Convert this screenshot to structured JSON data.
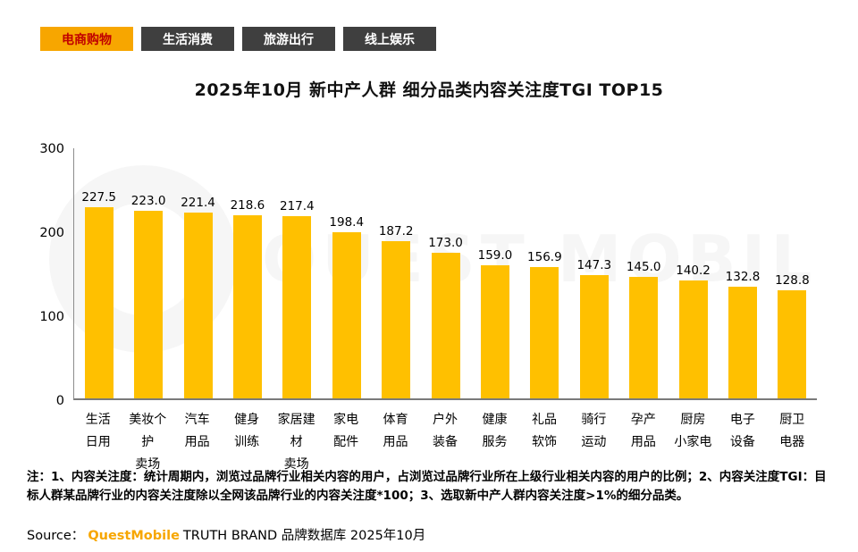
{
  "tabs": [
    {
      "label": "电商购物",
      "active": true
    },
    {
      "label": "生活消费",
      "active": false
    },
    {
      "label": "旅游出行",
      "active": false
    },
    {
      "label": "线上娱乐",
      "active": false
    }
  ],
  "title": "2025年10月 新中产人群 细分品类内容关注度TGI TOP15",
  "chart_data": {
    "type": "bar",
    "categories": [
      [
        "生活",
        "日用"
      ],
      [
        "美妆个护",
        "卖场"
      ],
      [
        "汽车",
        "用品"
      ],
      [
        "健身",
        "训练"
      ],
      [
        "家居建材",
        "卖场"
      ],
      [
        "家电",
        "配件"
      ],
      [
        "体育",
        "用品"
      ],
      [
        "户外",
        "装备"
      ],
      [
        "健康",
        "服务"
      ],
      [
        "礼品",
        "软饰"
      ],
      [
        "骑行",
        "运动"
      ],
      [
        "孕产",
        "用品"
      ],
      [
        "厨房",
        "小家电"
      ],
      [
        "电子",
        "设备"
      ],
      [
        "厨卫",
        "电器"
      ]
    ],
    "values": [
      227.5,
      223.0,
      221.4,
      218.6,
      217.4,
      198.4,
      187.2,
      173.0,
      159.0,
      156.9,
      147.3,
      145.0,
      140.2,
      132.8,
      128.8
    ],
    "yticks": [
      0,
      100,
      200,
      300
    ],
    "ylim": [
      0,
      300
    ],
    "bar_color": "#FFC000",
    "title": "2025年10月 新中产人群 细分品类内容关注度TGI TOP15",
    "xlabel": "",
    "ylabel": "",
    "grid": false,
    "legend": false
  },
  "note": "注：1、内容关注度：统计周期内，浏览过品牌行业相关内容的用户，占浏览过品牌行业所在上级行业相关内容的用户的比例；2、内容关注度TGI：目标人群某品牌行业的内容关注度除以全网该品牌行业的内容关注度*100；3、选取新中产人群内容关注度>1%的细分品类。",
  "source": {
    "prefix": "Source：",
    "brand": "QuestMobile",
    "suffix": "TRUTH BRAND 品牌数据库 2025年10月"
  },
  "watermark": "QUEST MOBILE",
  "colors": {
    "bar": "#FFC000",
    "active_tab_bg": "#F7A600",
    "active_tab_text": "#C00000",
    "inactive_tab_bg": "#3F3F3F",
    "inactive_tab_text": "#FFFFFF",
    "brand_orange": "#F7A600"
  }
}
